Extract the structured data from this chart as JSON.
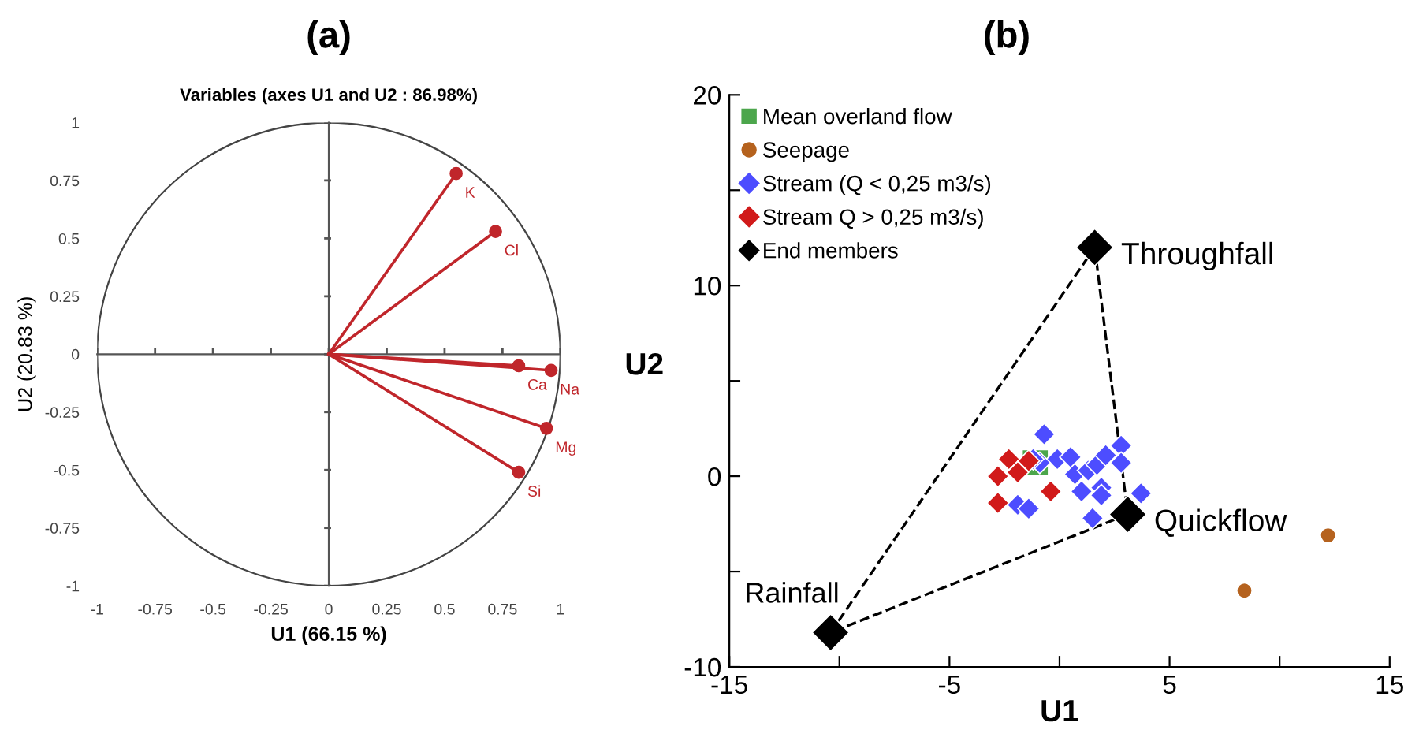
{
  "chart_data": [
    {
      "type": "line",
      "title": "(a)",
      "subtitle": "Variables (axes U1 and U2 : 86.98%)",
      "xlabel": "U1 (66.15 %)",
      "ylabel": "U2 (20.83 %)",
      "series": [
        {
          "name": "K",
          "color": "#c0262b",
          "x": [
            0,
            0.55
          ],
          "values": [
            0,
            0.78
          ]
        },
        {
          "name": "Cl",
          "color": "#c0262b",
          "x": [
            0,
            0.72
          ],
          "values": [
            0,
            0.53
          ]
        },
        {
          "name": "Ca",
          "color": "#c0262b",
          "x": [
            0,
            0.82
          ],
          "values": [
            0,
            -0.05
          ]
        },
        {
          "name": "Na",
          "color": "#c0262b",
          "x": [
            0,
            0.96
          ],
          "values": [
            0,
            -0.07
          ]
        },
        {
          "name": "Mg",
          "color": "#c0262b",
          "x": [
            0,
            0.94
          ],
          "values": [
            0,
            -0.32
          ]
        },
        {
          "name": "Si",
          "color": "#c0262b",
          "x": [
            0,
            0.82
          ],
          "values": [
            0,
            -0.51
          ]
        }
      ],
      "xlim": [
        -1,
        1
      ],
      "ylim": [
        -1,
        1
      ],
      "xticks": [
        -1,
        -0.75,
        -0.5,
        -0.25,
        0,
        0.25,
        0.5,
        0.75,
        1
      ],
      "yticks": [
        -1,
        -0.75,
        -0.5,
        -0.25,
        0,
        0.25,
        0.5,
        0.75,
        1
      ],
      "marker": "circle"
    },
    {
      "type": "scatter",
      "title": "(b)",
      "xlabel": "U1",
      "ylabel": "U2",
      "series": [
        {
          "type": "line",
          "color": "#000000",
          "line_style": "dashed",
          "marker": "none",
          "x": [
            -10.4,
            1.6
          ],
          "values": [
            -8.2,
            12.0
          ]
        },
        {
          "type": "line",
          "color": "#000000",
          "line_style": "dashed",
          "marker": "none",
          "x": [
            1.6,
            3.1
          ],
          "values": [
            12.0,
            -2.0
          ]
        },
        {
          "type": "line",
          "color": "#000000",
          "line_style": "dashed",
          "marker": "none",
          "x": [
            3.1,
            -10.4
          ],
          "values": [
            -2.0,
            -8.2
          ]
        },
        {
          "name": "Mean overland flow",
          "color": "#4ca64c",
          "marker": "square",
          "x": [
            -1.1
          ],
          "values": [
            0.7
          ]
        },
        {
          "name": "Seepage",
          "color": "#b5621e",
          "marker": "circle",
          "x": [
            12.2,
            8.4
          ],
          "values": [
            -3.1,
            -6.0
          ]
        },
        {
          "name": "Stream (Q < 0,25 m3/s)",
          "color": "#4d4dff",
          "marker": "diamond",
          "x": [
            -0.7,
            -0.1,
            0.5,
            0.7,
            1.3,
            1.7,
            2.1,
            2.8,
            2.8,
            1.0,
            1.9,
            1.9,
            3.7,
            1.5,
            -1.9,
            -1.4,
            -0.9,
            -1.2
          ],
          "values": [
            2.2,
            0.9,
            1.0,
            0.1,
            0.3,
            0.6,
            1.1,
            1.6,
            0.7,
            -0.8,
            -0.6,
            -1.0,
            -0.9,
            -2.2,
            -1.5,
            -1.7,
            0.7,
            0.9
          ]
        },
        {
          "name": "Stream Q > 0,25 m3/s)",
          "color": "#d11a1a",
          "marker": "diamond",
          "x": [
            -2.3,
            -2.8,
            -1.9,
            -1.4,
            -0.4,
            -2.8
          ],
          "values": [
            0.9,
            0.0,
            0.2,
            0.8,
            -0.8,
            -1.4
          ]
        },
        {
          "name": "End members",
          "color": "#000000",
          "marker": "diamond",
          "x": [
            1.6,
            3.1,
            -10.4
          ],
          "values": [
            12.0,
            -2.0,
            -8.2
          ]
        }
      ],
      "annotations": [
        {
          "text": "Throughfall",
          "x": 1.6,
          "y": 12.0
        },
        {
          "text": "Quickflow",
          "x": 3.1,
          "y": -2.0
        },
        {
          "text": "Rainfall",
          "x": -10.4,
          "y": -8.2
        }
      ],
      "xlim": [
        -15,
        15
      ],
      "ylim": [
        -10,
        20
      ],
      "xticks": [
        -15,
        {
          "value": -10,
          "label": null
        },
        -5,
        {
          "value": 0,
          "label": null
        },
        5,
        {
          "value": 10,
          "label": null
        },
        15
      ],
      "yticks": [
        -10,
        {
          "value": -5,
          "label": null
        },
        0,
        {
          "value": 5,
          "label": null
        },
        10,
        {
          "value": 15,
          "label": null
        },
        20
      ],
      "legend": "top left"
    }
  ]
}
